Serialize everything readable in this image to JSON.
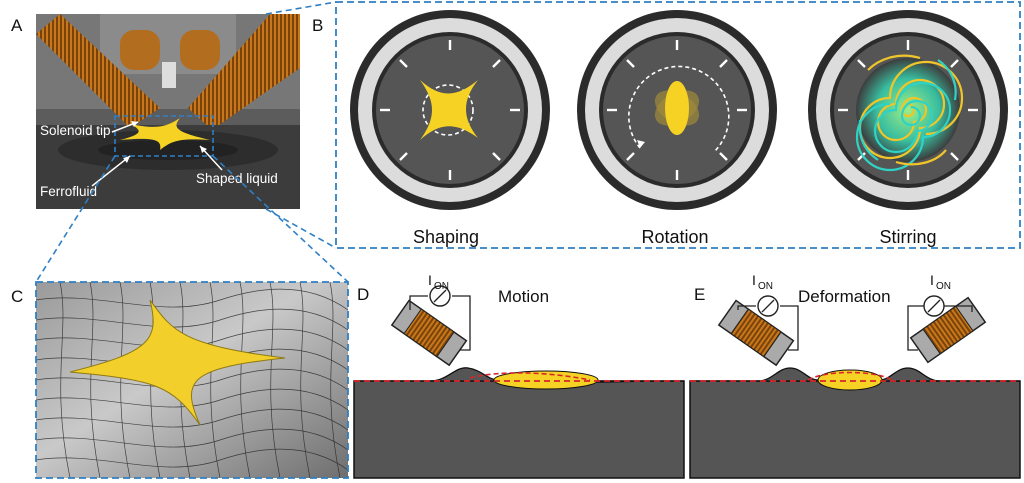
{
  "panels": {
    "a": {
      "label": "A",
      "annotations": {
        "solenoid_tip": "Solenoid tip",
        "ferrofluid": "Ferrofluid",
        "shaped_liquid": "Shaped liquid"
      }
    },
    "b": {
      "label": "B",
      "captions": {
        "shaping": "Shaping",
        "rotation": "Rotation",
        "stirring": "Stirring"
      }
    },
    "c": {
      "label": "C"
    },
    "d": {
      "label": "D",
      "title": "Motion",
      "current": "I",
      "current_sub": "ON"
    },
    "e": {
      "label": "E",
      "title": "Deformation",
      "current_left": "I",
      "current_left_sub": "ON",
      "current_right": "I",
      "current_right_sub": "ON"
    }
  },
  "colors": {
    "dashed_frame": "#2f7fc4",
    "ferrofluid": "#555555",
    "liquid": "#f2cf2a",
    "coil": "#d98c1c",
    "interface_dash": "#d8262b",
    "dye_cyan": "#2fd3c5"
  }
}
